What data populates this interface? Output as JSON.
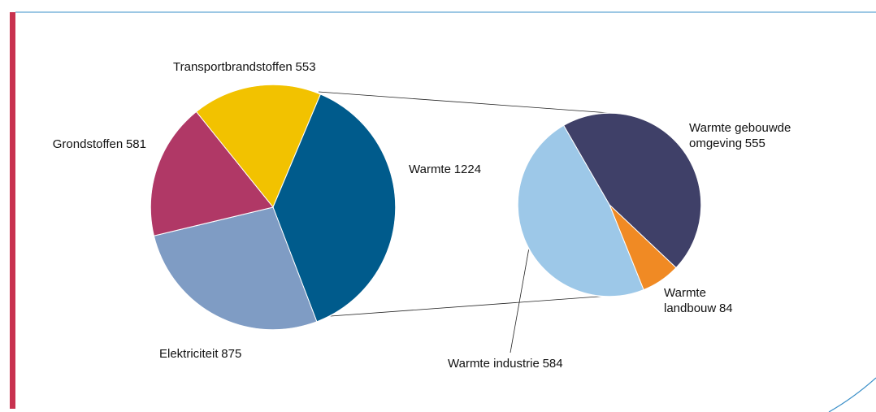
{
  "chart_data": [
    {
      "type": "pie",
      "categories": [
        "Transportbrandstoffen",
        "Warmte",
        "Elektriciteit",
        "Grondstoffen"
      ],
      "values": [
        553,
        1224,
        875,
        581
      ],
      "colors": [
        "#f2c200",
        "#005b8c",
        "#7f9cc4",
        "#b03866"
      ]
    },
    {
      "type": "pie",
      "categories": [
        "Warmte gebouwde omgeving",
        "Warmte landbouw",
        "Warmte industrie"
      ],
      "values": [
        555,
        84,
        584
      ],
      "colors": [
        "#3f4068",
        "#f08a24",
        "#9dc8e8"
      ]
    }
  ]
}
